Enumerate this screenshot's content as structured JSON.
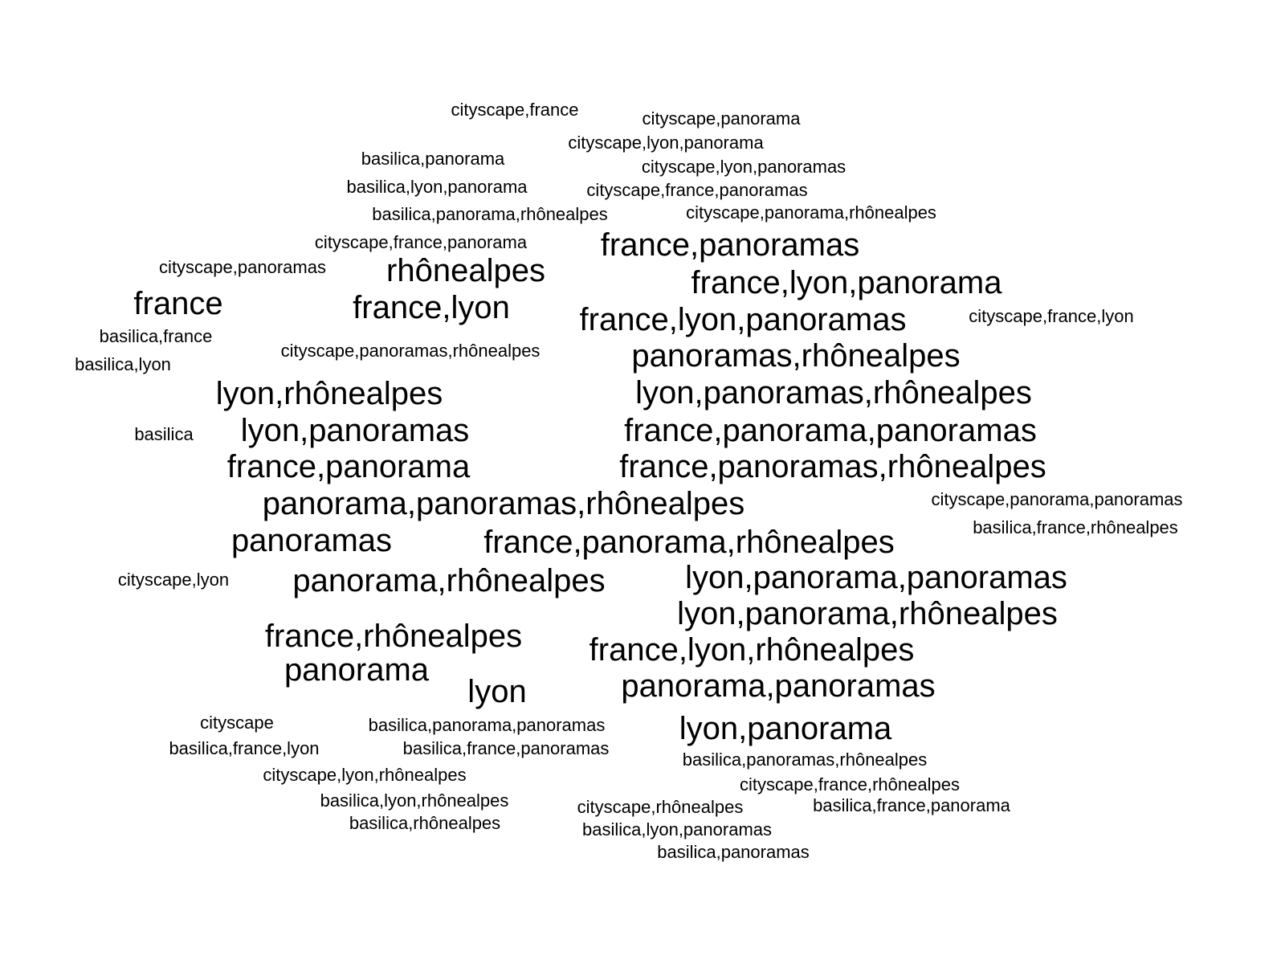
{
  "words": [
    {
      "text": "cityscape,france",
      "size": "small"
    },
    {
      "text": "cityscape,panorama",
      "size": "small"
    },
    {
      "text": "cityscape,lyon,panorama",
      "size": "small"
    },
    {
      "text": "basilica,panorama",
      "size": "small"
    },
    {
      "text": "cityscape,lyon,panoramas",
      "size": "small"
    },
    {
      "text": "basilica,lyon,panorama",
      "size": "small"
    },
    {
      "text": "cityscape,france,panoramas",
      "size": "small"
    },
    {
      "text": "basilica,panorama,rhônealpes",
      "size": "small"
    },
    {
      "text": "cityscape,panorama,rhônealpes",
      "size": "small"
    },
    {
      "text": "france,panoramas",
      "size": "large"
    },
    {
      "text": "cityscape,france,panorama",
      "size": "small"
    },
    {
      "text": "cityscape,panoramas",
      "size": "small"
    },
    {
      "text": "rhônealpes",
      "size": "large"
    },
    {
      "text": "france,lyon,panorama",
      "size": "large"
    },
    {
      "text": "france",
      "size": "large"
    },
    {
      "text": "france,lyon",
      "size": "large"
    },
    {
      "text": "france,lyon,panoramas",
      "size": "large"
    },
    {
      "text": "cityscape,france,lyon",
      "size": "small"
    },
    {
      "text": "basilica,france",
      "size": "small"
    },
    {
      "text": "cityscape,panoramas,rhônealpes",
      "size": "small"
    },
    {
      "text": "panoramas,rhônealpes",
      "size": "large"
    },
    {
      "text": "basilica,lyon",
      "size": "small"
    },
    {
      "text": "lyon,rhônealpes",
      "size": "large"
    },
    {
      "text": "lyon,panoramas,rhônealpes",
      "size": "large"
    },
    {
      "text": "basilica",
      "size": "small"
    },
    {
      "text": "lyon,panoramas",
      "size": "large"
    },
    {
      "text": "france,panorama,panoramas",
      "size": "large"
    },
    {
      "text": "france,panorama",
      "size": "large"
    },
    {
      "text": "france,panoramas,rhônealpes",
      "size": "large"
    },
    {
      "text": "panorama,panoramas,rhônealpes",
      "size": "large"
    },
    {
      "text": "cityscape,panorama,panoramas",
      "size": "small"
    },
    {
      "text": "basilica,france,rhônealpes",
      "size": "small"
    },
    {
      "text": "panoramas",
      "size": "large"
    },
    {
      "text": "france,panorama,rhônealpes",
      "size": "large"
    },
    {
      "text": "cityscape,lyon",
      "size": "small"
    },
    {
      "text": "panorama,rhônealpes",
      "size": "large"
    },
    {
      "text": "lyon,panorama,panoramas",
      "size": "large"
    },
    {
      "text": "lyon,panorama,rhônealpes",
      "size": "large"
    },
    {
      "text": "france,rhônealpes",
      "size": "large"
    },
    {
      "text": "france,lyon,rhônealpes",
      "size": "large"
    },
    {
      "text": "panorama",
      "size": "large"
    },
    {
      "text": "lyon",
      "size": "large"
    },
    {
      "text": "panorama,panoramas",
      "size": "large"
    },
    {
      "text": "cityscape",
      "size": "small"
    },
    {
      "text": "basilica,panorama,panoramas",
      "size": "small"
    },
    {
      "text": "lyon,panorama",
      "size": "large"
    },
    {
      "text": "basilica,france,lyon",
      "size": "small"
    },
    {
      "text": "basilica,france,panoramas",
      "size": "small"
    },
    {
      "text": "basilica,panoramas,rhônealpes",
      "size": "small"
    },
    {
      "text": "cityscape,lyon,rhônealpes",
      "size": "small"
    },
    {
      "text": "cityscape,france,rhônealpes",
      "size": "small"
    },
    {
      "text": "basilica,lyon,rhônealpes",
      "size": "small"
    },
    {
      "text": "cityscape,rhônealpes",
      "size": "small"
    },
    {
      "text": "basilica,france,panorama",
      "size": "small"
    },
    {
      "text": "basilica,rhônealpes",
      "size": "small"
    },
    {
      "text": "basilica,lyon,panoramas",
      "size": "small"
    },
    {
      "text": "basilica,panoramas",
      "size": "small"
    }
  ]
}
